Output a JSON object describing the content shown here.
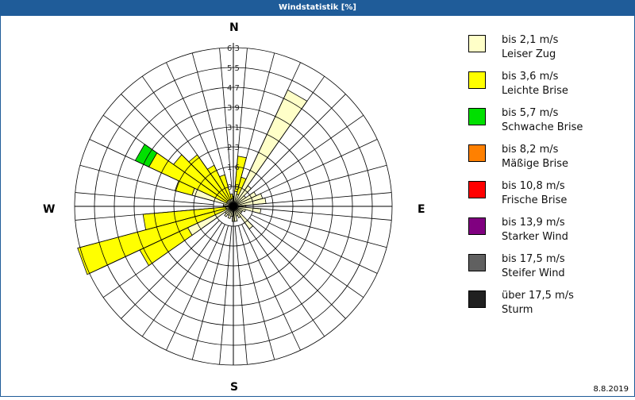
{
  "window": {
    "title": "Windstatistik [%]",
    "date": "8.8.2019"
  },
  "compass": {
    "north": "N",
    "east": "E",
    "south": "S",
    "west": "W"
  },
  "legend": [
    {
      "range": "bis 2,1 m/s",
      "name": "Leiser Zug",
      "color": "#ffffc8"
    },
    {
      "range": "bis 3,6 m/s",
      "name": "Leichte Brise",
      "color": "#ffff00"
    },
    {
      "range": "bis 5,7 m/s",
      "name": "Schwache Brise",
      "color": "#00e000"
    },
    {
      "range": "bis 8,2 m/s",
      "name": "Mäßige Brise",
      "color": "#ff8000"
    },
    {
      "range": "bis 10,8 m/s",
      "name": "Frische Brise",
      "color": "#ff0000"
    },
    {
      "range": "bis 13,9 m/s",
      "name": "Starker Wind",
      "color": "#800080"
    },
    {
      "range": "bis 17,5 m/s",
      "name": "Steifer Wind",
      "color": "#606060"
    },
    {
      "range": "über 17,5 m/s",
      "name": "Sturm",
      "color": "#202020"
    }
  ],
  "chart_data": {
    "type": "wind-rose",
    "title": "Windstatistik [%]",
    "radial_ticks": [
      "0,8",
      "1,6",
      "2,3",
      "3,1",
      "3,9",
      "4,7",
      "5,5",
      "6,3"
    ],
    "radial_max": 6.3,
    "sector_width_deg": 10,
    "directions_labels": [
      "N",
      "E",
      "S",
      "W"
    ],
    "series_names": [
      "bis 2,1 m/s",
      "bis 3,6 m/s",
      "bis 5,7 m/s"
    ],
    "sectors": [
      {
        "dir": 0,
        "cum": [
          0.4,
          0.4,
          0.4
        ]
      },
      {
        "dir": 10,
        "cum": [
          0.6,
          2.0,
          2.0
        ]
      },
      {
        "dir": 20,
        "cum": [
          0.5,
          1.2,
          1.2
        ]
      },
      {
        "dir": 30,
        "cum": [
          5.1,
          5.1,
          5.1
        ]
      },
      {
        "dir": 40,
        "cum": [
          1.0,
          1.0,
          1.0
        ]
      },
      {
        "dir": 50,
        "cum": [
          0.6,
          0.6,
          0.6
        ]
      },
      {
        "dir": 60,
        "cum": [
          1.0,
          1.0,
          1.0
        ]
      },
      {
        "dir": 70,
        "cum": [
          1.2,
          1.2,
          1.2
        ]
      },
      {
        "dir": 80,
        "cum": [
          1.3,
          1.3,
          1.3
        ]
      },
      {
        "dir": 90,
        "cum": [
          0.5,
          0.5,
          0.5
        ]
      },
      {
        "dir": 100,
        "cum": [
          1.1,
          1.1,
          1.1
        ]
      },
      {
        "dir": 110,
        "cum": [
          0.5,
          0.5,
          0.5
        ]
      },
      {
        "dir": 120,
        "cum": [
          0.4,
          0.4,
          0.4
        ]
      },
      {
        "dir": 130,
        "cum": [
          0.4,
          0.4,
          0.4
        ]
      },
      {
        "dir": 140,
        "cum": [
          1.1,
          1.1,
          1.1
        ]
      },
      {
        "dir": 150,
        "cum": [
          0.5,
          0.5,
          0.5
        ]
      },
      {
        "dir": 160,
        "cum": [
          0.4,
          0.4,
          0.4
        ]
      },
      {
        "dir": 170,
        "cum": [
          0.6,
          0.6,
          0.6
        ]
      },
      {
        "dir": 180,
        "cum": [
          0.6,
          0.6,
          0.6
        ]
      },
      {
        "dir": 190,
        "cum": [
          0.4,
          0.4,
          0.4
        ]
      },
      {
        "dir": 200,
        "cum": [
          0.5,
          0.5,
          0.5
        ]
      },
      {
        "dir": 210,
        "cum": [
          0.4,
          0.4,
          0.4
        ]
      },
      {
        "dir": 220,
        "cum": [
          0.5,
          0.5,
          0.5
        ]
      },
      {
        "dir": 230,
        "cum": [
          0.4,
          0.4,
          0.4
        ]
      },
      {
        "dir": 240,
        "cum": [
          2.0,
          4.1,
          4.1
        ]
      },
      {
        "dir": 250,
        "cum": [
          0.3,
          6.4,
          6.4
        ]
      },
      {
        "dir": 260,
        "cum": [
          0.3,
          3.6,
          3.6
        ]
      },
      {
        "dir": 270,
        "cum": [
          0.4,
          0.4,
          0.4
        ]
      },
      {
        "dir": 280,
        "cum": [
          0.4,
          0.4,
          0.4
        ]
      },
      {
        "dir": 290,
        "cum": [
          1.7,
          2.4,
          2.4
        ]
      },
      {
        "dir": 300,
        "cum": [
          0.3,
          3.7,
          4.3
        ]
      },
      {
        "dir": 310,
        "cum": [
          0.3,
          2.9,
          2.9
        ]
      },
      {
        "dir": 320,
        "cum": [
          0.3,
          2.5,
          2.5
        ]
      },
      {
        "dir": 330,
        "cum": [
          0.3,
          1.8,
          1.8
        ]
      },
      {
        "dir": 340,
        "cum": [
          0.3,
          1.3,
          1.3
        ]
      },
      {
        "dir": 350,
        "cum": [
          0.3,
          0.5,
          0.5
        ]
      }
    ],
    "grid": {
      "rings": 8,
      "spokes": 36
    },
    "legend_position": "right"
  }
}
